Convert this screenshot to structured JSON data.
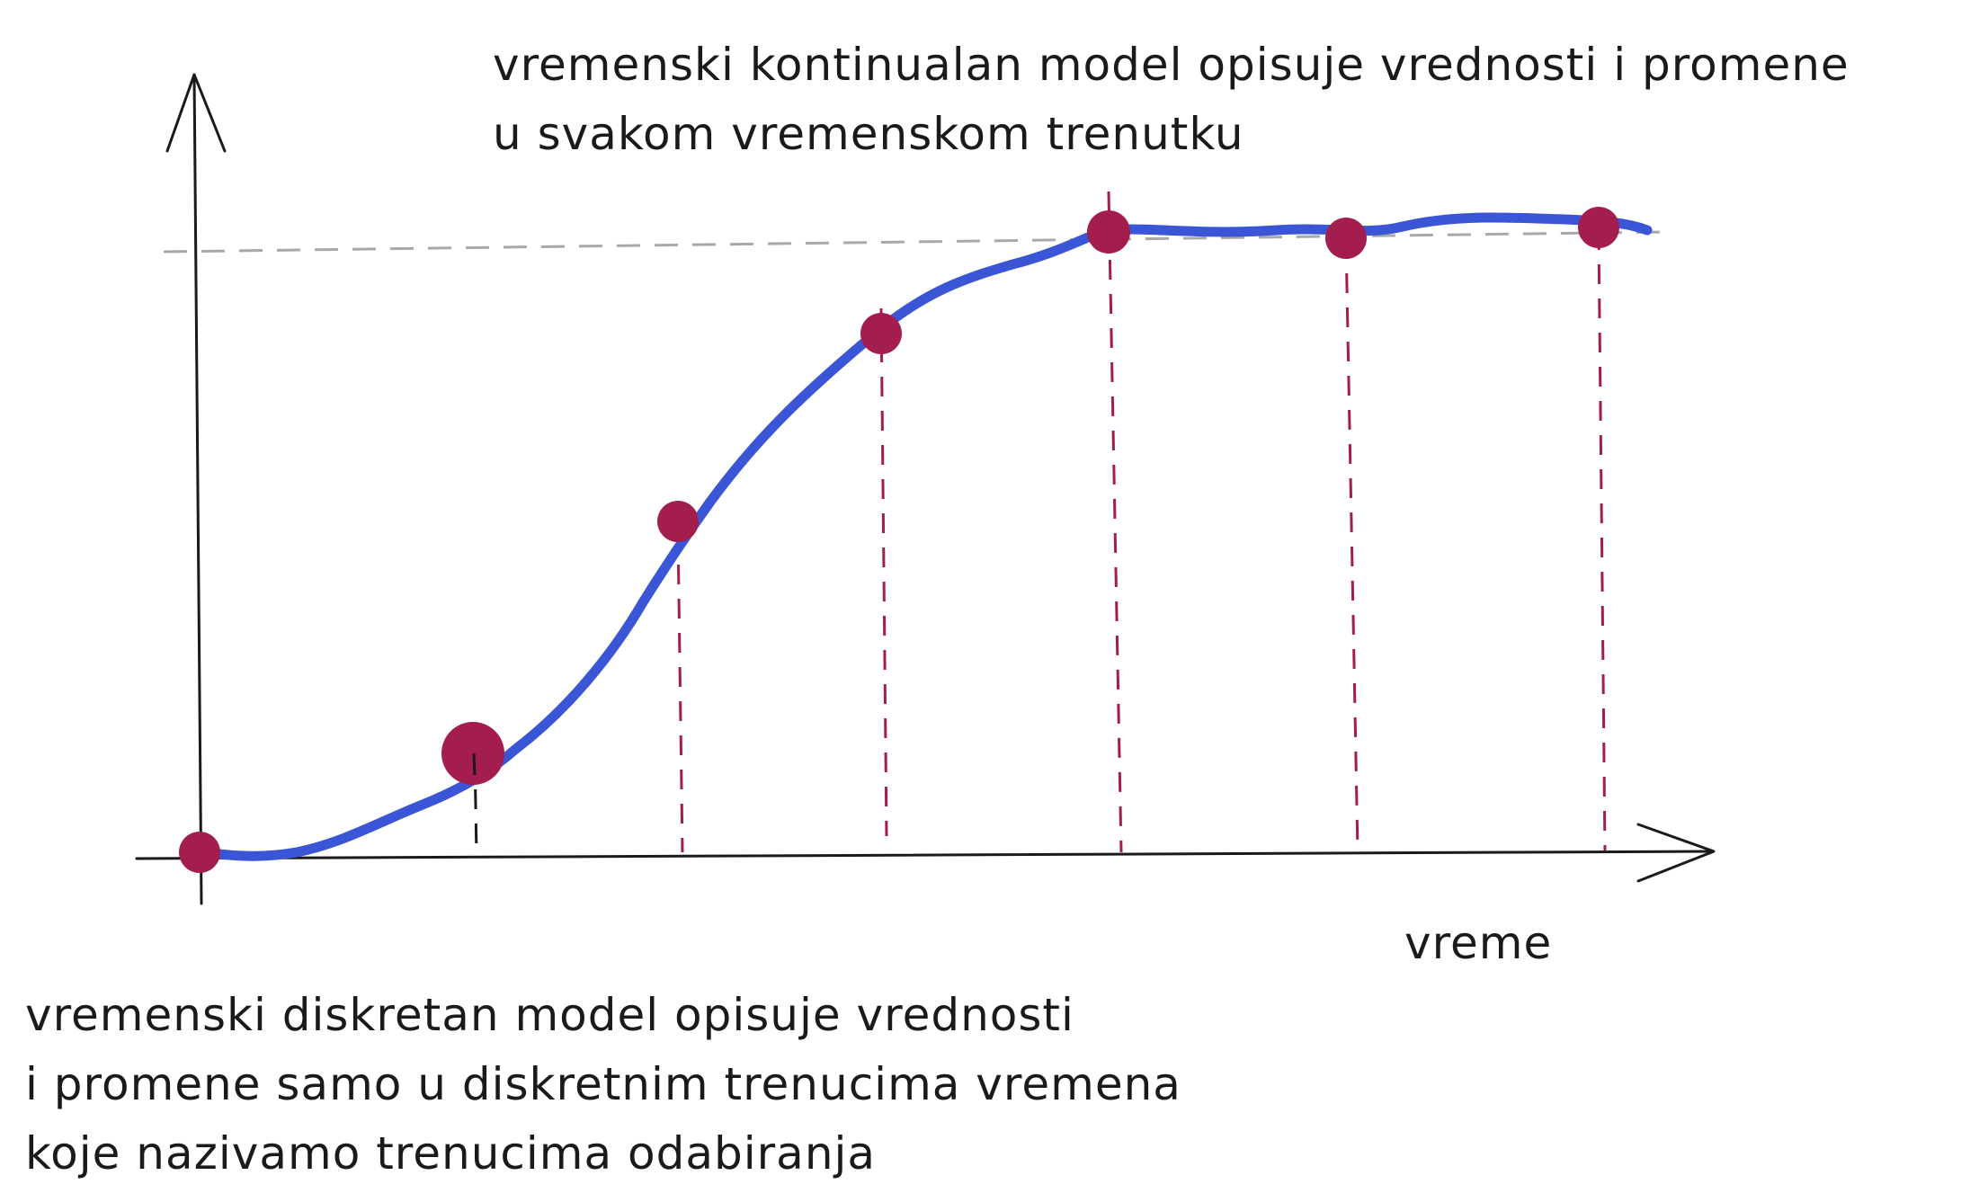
{
  "continuous_caption": {
    "line1": "vremenski kontinualan model opisuje vrednosti i promene",
    "line2": "u svakom vremenskom trenutku"
  },
  "discrete_caption": {
    "line1": "vremenski diskretan model opisuje vrednosti",
    "line2": "i promene samo u diskretnim trenucima vremena",
    "line3": "koje nazivamo trenucima odabiranja"
  },
  "time_axis_label": "vreme",
  "colors": {
    "curve": "#3a55d6",
    "sample_point": "#a31d4f",
    "sample_dash": "#a31d4f",
    "first_sample_dash": "#1a1a1a",
    "plateau_dash": "#a8a8a8",
    "axes": "#1a1a1a",
    "text": "#1a1a1a"
  },
  "curve": {
    "shape": "s-curve",
    "color_name": "blue"
  },
  "sample_points": [
    {
      "name": "t0"
    },
    {
      "name": "t1",
      "emphasized": true
    },
    {
      "name": "t2"
    },
    {
      "name": "t3"
    },
    {
      "name": "t4"
    },
    {
      "name": "t5"
    },
    {
      "name": "t6"
    }
  ]
}
